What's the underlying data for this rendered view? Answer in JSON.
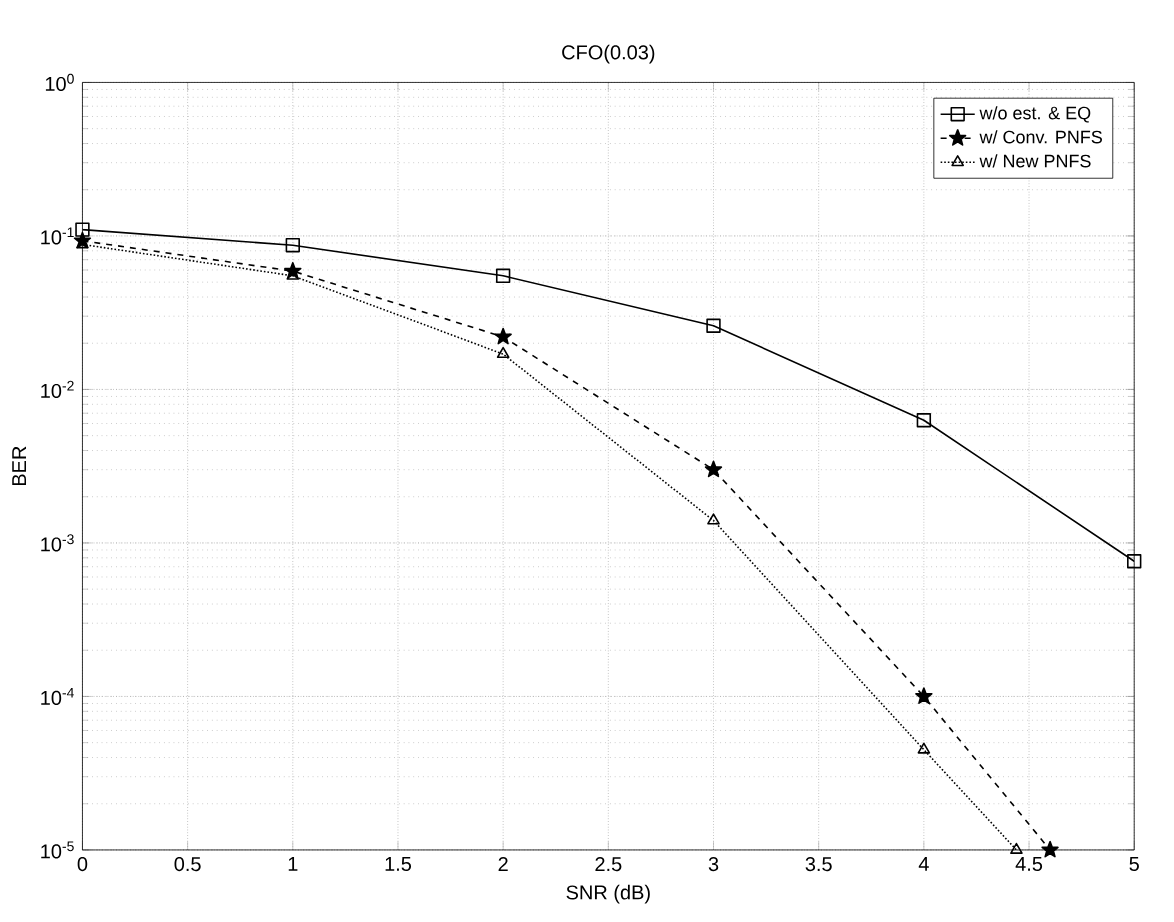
{
  "chart_data": {
    "type": "line",
    "title": "CFO(0.03)",
    "xlabel": "SNR (dB)",
    "ylabel": "BER",
    "log": "y",
    "xlim": [
      0,
      5
    ],
    "xticks": [
      0,
      0.5,
      1,
      1.5,
      2,
      2.5,
      3,
      3.5,
      4,
      4.5,
      5
    ],
    "ylim": [
      1e-05,
      1
    ],
    "yticks": [
      {
        "value": 1e-05,
        "label": "10$^{-5}$"
      },
      {
        "value": 0.0001,
        "label": "10$^{-4}$"
      },
      {
        "value": 0.001,
        "label": "10$^{-3}$"
      },
      {
        "value": 0.01,
        "label": "10$^{-2}$"
      },
      {
        "value": 0.1,
        "label": "10$^{-1}$"
      },
      {
        "value": 1,
        "label": "10$^{0}$"
      }
    ],
    "grid": true,
    "legend": "top right",
    "series": [
      {
        "name": "w/o est. & EQ",
        "color": "#000000",
        "x": [
          0,
          1,
          2,
          3,
          4,
          5
        ],
        "values": [
          0.11,
          0.087,
          0.055,
          0.026,
          0.0063,
          0.00076
        ],
        "marker": "square",
        "line_style": "solid"
      },
      {
        "name": "w/ Conv. PNFS",
        "color": "#000000",
        "x": [
          0,
          1,
          2,
          3,
          4,
          4.6
        ],
        "values": [
          0.093,
          0.059,
          0.022,
          0.003,
          0.0001,
          1e-05
        ],
        "marker": "star",
        "line_style": "dashed"
      },
      {
        "name": "w/ New PNFS",
        "color": "#000000",
        "x": [
          0,
          1,
          2,
          3,
          4,
          4.44
        ],
        "values": [
          0.088,
          0.055,
          0.017,
          0.0014,
          4.5e-05,
          1e-05
        ],
        "marker": "triangle",
        "line_style": "dotted"
      }
    ]
  }
}
